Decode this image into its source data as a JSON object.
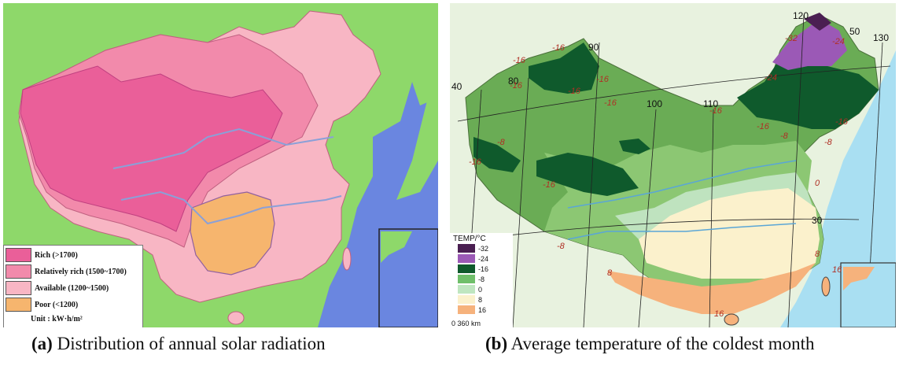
{
  "panel_a": {
    "caption_prefix": "(a)",
    "caption_text": " Distribution of annual solar radiation",
    "legend": [
      {
        "label": "Rich (>1700)",
        "color": "#ea5f99"
      },
      {
        "label": "Relatively rich (1500~1700)",
        "color": "#f28aab"
      },
      {
        "label": "Available (1200~1500)",
        "color": "#f8b6c4"
      },
      {
        "label": "Poor (<1200)",
        "color": "#f6b56e"
      }
    ],
    "unit": "Unit :  kW·h/m²",
    "colors": {
      "land": "#8ed86a",
      "sea": "#6a86e0",
      "rich": "#ea5f99",
      "rel_rich": "#f28aab",
      "available": "#f8b6c4",
      "poor": "#f6b56e",
      "river": "#8aa0d8"
    }
  },
  "panel_b": {
    "caption_prefix": "(b)",
    "caption_text": " Average temperature of the coldest month",
    "legend_title": "TEMP/°C",
    "legend": [
      {
        "label": "-32",
        "color": "#4a1f52"
      },
      {
        "label": "-24",
        "color": "#9b59b6"
      },
      {
        "label": "-16",
        "color": "#0f5a2c"
      },
      {
        "label": "-8",
        "color": "#6fbf6a"
      },
      {
        "label": "0",
        "color": "#bfe6c0"
      },
      {
        "label": "8",
        "color": "#fbf1cc"
      },
      {
        "label": "16",
        "color": "#f6b27c"
      }
    ],
    "scale": "0     360 km",
    "meridians": [
      "40",
      "80",
      "90",
      "100",
      "110",
      "120",
      "130"
    ],
    "parallels": [
      "50",
      "30"
    ],
    "isotherm_labels": [
      "-16",
      "-16",
      "-16",
      "-16",
      "-16",
      "-16",
      "-16",
      "-16",
      "-8",
      "-16",
      "-16",
      "-32",
      "-24",
      "-24",
      "-16",
      "-8",
      "-8",
      "-8",
      "0",
      "-8",
      "8",
      "8",
      "16",
      "16"
    ],
    "colors": {
      "sea": "#a9dff2",
      "land_outside": "#e8f2df",
      "zone_m16": "#6aac55",
      "zone_m8": "#8cc773",
      "zone_0": "#bfe3bf",
      "zone_8": "#fbf1cc",
      "zone_16": "#f6b27c",
      "dark_green": "#0f5a2c",
      "purple": "#9b59b6",
      "dark_purple": "#4a1f52",
      "isotherm": "#c0392b"
    }
  }
}
